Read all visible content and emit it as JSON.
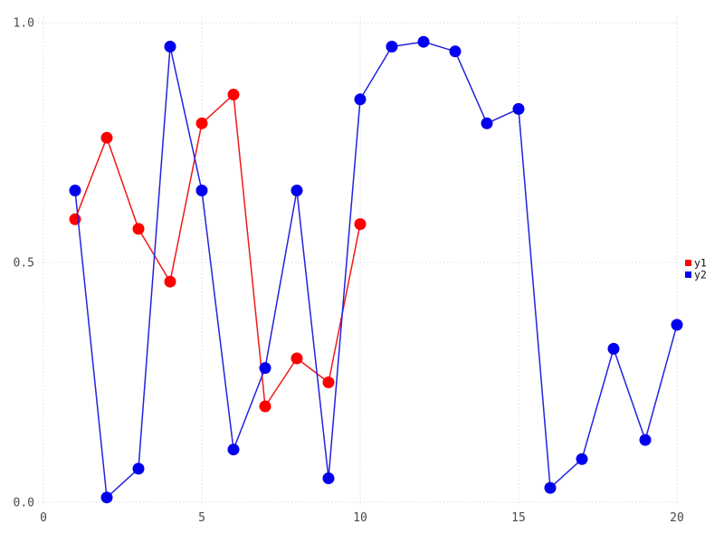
{
  "chart_data": {
    "type": "line",
    "title": "",
    "xlabel": "",
    "ylabel": "",
    "xlim": [
      0,
      20
    ],
    "ylim": [
      0.0,
      1.0
    ],
    "grid": "dotted",
    "legend_position": "right-middle",
    "x_ticks": {
      "values": [
        0,
        5,
        10,
        15,
        20
      ],
      "labels": [
        "0",
        "5",
        "10",
        "15",
        "20"
      ]
    },
    "y_ticks": {
      "values": [
        0.0,
        0.5,
        1.0
      ],
      "labels": [
        "0.0",
        "0.5",
        "1.0"
      ]
    },
    "series": [
      {
        "name": "y1",
        "marker_color": "#ff0000",
        "line_color": "#f01818",
        "x": [
          1,
          2,
          3,
          4,
          5,
          6,
          7,
          8,
          9,
          10
        ],
        "values": [
          0.59,
          0.76,
          0.57,
          0.46,
          0.79,
          0.85,
          0.2,
          0.3,
          0.25,
          0.58
        ]
      },
      {
        "name": "y2",
        "marker_color": "#0000ee",
        "line_color": "#2222e0",
        "x": [
          1,
          2,
          3,
          4,
          5,
          6,
          7,
          8,
          9,
          10,
          11,
          12,
          13,
          14,
          15,
          16,
          17,
          18,
          19,
          20
        ],
        "values": [
          0.65,
          0.01,
          0.07,
          0.95,
          0.65,
          0.11,
          0.28,
          0.65,
          0.05,
          0.84,
          0.95,
          0.96,
          0.94,
          0.79,
          0.82,
          0.03,
          0.09,
          0.32,
          0.13,
          0.37
        ]
      }
    ]
  },
  "colors": {
    "background": "#ffffff",
    "grid": "#d9dbe4",
    "tick_label": "#4a4a4a",
    "legend_text": "#111111"
  }
}
